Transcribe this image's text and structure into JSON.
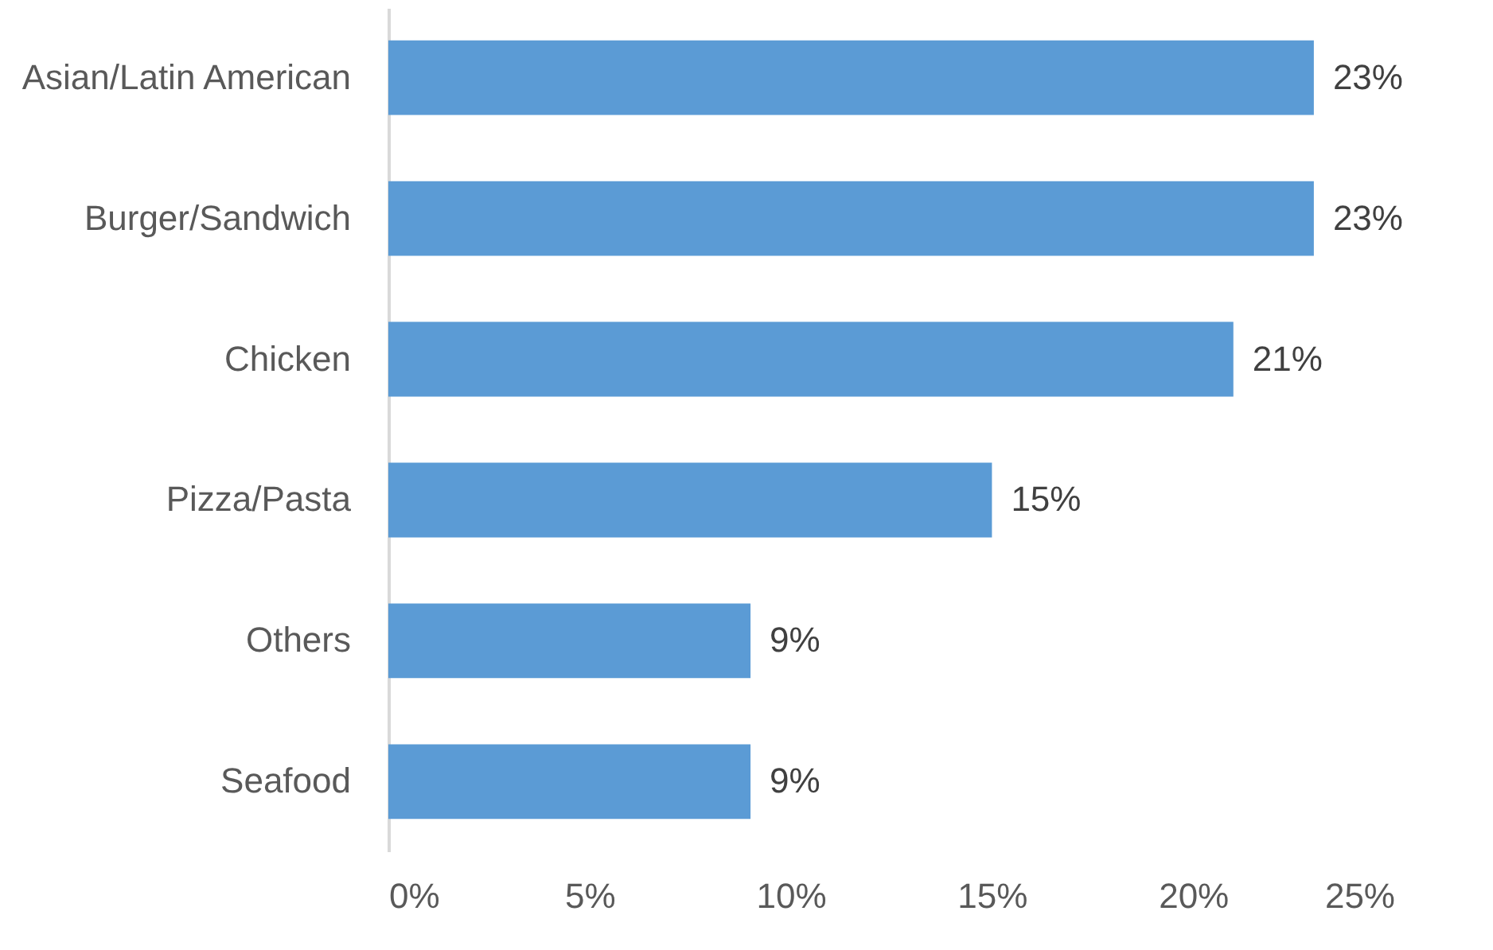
{
  "chart_data": {
    "type": "bar",
    "orientation": "horizontal",
    "categories": [
      "Asian/Latin American",
      "Burger/Sandwich",
      "Chicken",
      "Pizza/Pasta",
      "Others",
      "Seafood"
    ],
    "values": [
      23,
      23,
      21,
      15,
      9,
      9
    ],
    "value_labels": [
      "23%",
      "23%",
      "21%",
      "15%",
      "9%",
      "9%"
    ],
    "color": "#5b9bd5",
    "xlim": [
      0,
      25
    ],
    "xticks": [
      {
        "value": 0,
        "label": "0%"
      },
      {
        "value": 5,
        "label": "5%"
      },
      {
        "value": 10,
        "label": "10%"
      },
      {
        "value": 15,
        "label": "15%"
      },
      {
        "value": 20,
        "label": "20%"
      },
      {
        "value": 25,
        "label": "25%"
      }
    ],
    "grid": false
  }
}
